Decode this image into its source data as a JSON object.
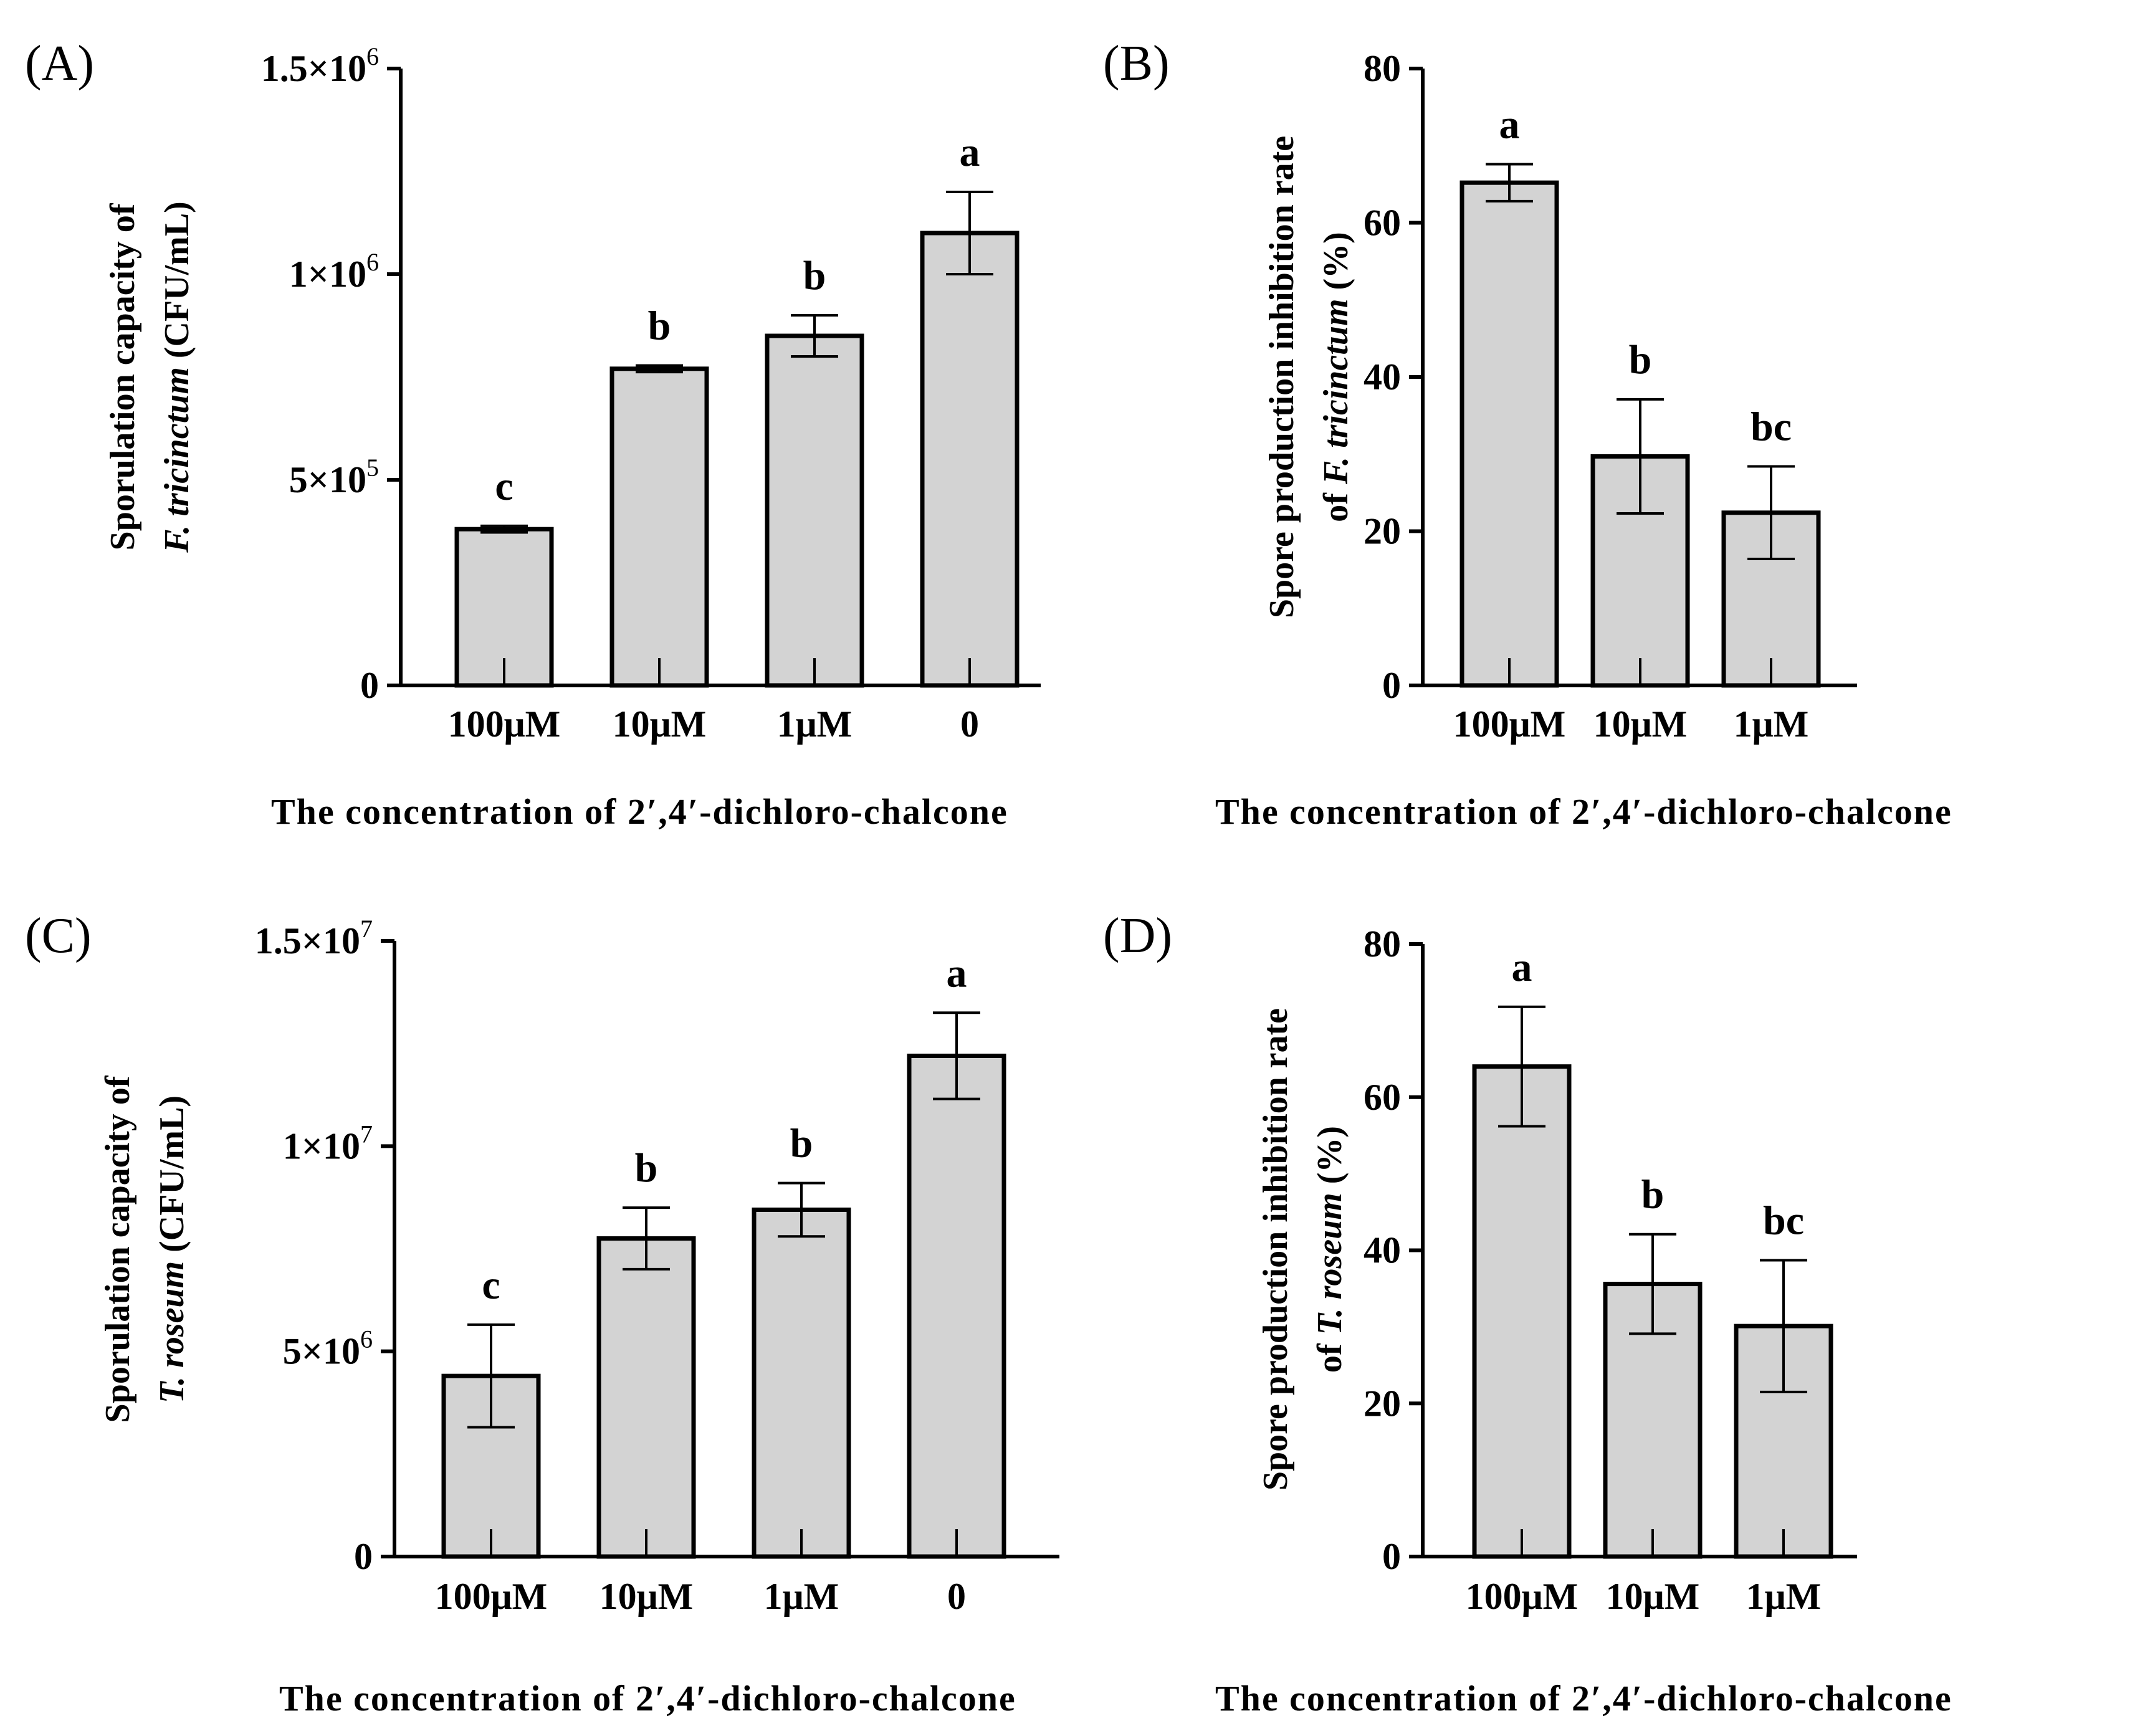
{
  "chart_data": [
    {
      "type": "bar",
      "panel_label": "(A)",
      "categories": [
        "100μM",
        "10μM",
        "1μM",
        "0"
      ],
      "values": [
        380000,
        770000,
        850000,
        1100000
      ],
      "errors": [
        8000,
        8000,
        50000,
        100000
      ],
      "significance": [
        "c",
        "b",
        "b",
        "a"
      ],
      "ylim": [
        0,
        1500000
      ],
      "yticks": [
        {
          "value": 0,
          "mant": "0",
          "exp": ""
        },
        {
          "value": 500000,
          "mant": "5×10",
          "exp": "5"
        },
        {
          "value": 1000000,
          "mant": "1×10",
          "exp": "6"
        },
        {
          "value": 1500000,
          "mant": "1.5×10",
          "exp": "6"
        }
      ],
      "ylabel_line1": "Sporulation capacity of",
      "ylabel_species": "F. tricinctum",
      "ylabel_unit": " (CFU/mL)",
      "xlabel": "The concentration of 2′,4′-dichloro-chalcone"
    },
    {
      "type": "bar",
      "panel_label": "(B)",
      "categories": [
        "100μM",
        "10μM",
        "1μM"
      ],
      "values": [
        65.2,
        29.7,
        22.4
      ],
      "errors": [
        2.4,
        7.4,
        6.0
      ],
      "significance": [
        "a",
        "b",
        "bc"
      ],
      "ylim": [
        0,
        80
      ],
      "yticks": [
        {
          "value": 0,
          "mant": "0",
          "exp": ""
        },
        {
          "value": 20,
          "mant": "20",
          "exp": ""
        },
        {
          "value": 40,
          "mant": "40",
          "exp": ""
        },
        {
          "value": 60,
          "mant": "60",
          "exp": ""
        },
        {
          "value": 80,
          "mant": "80",
          "exp": ""
        }
      ],
      "ylabel_line1": "Spore production inhibition rate",
      "ylabel_prefix": "of ",
      "ylabel_species": "F. tricinctum",
      "ylabel_unit": "  (%)",
      "xlabel": "The concentration of 2′,4′-dichloro-chalcone"
    },
    {
      "type": "bar",
      "panel_label": "(C)",
      "categories": [
        "100μM",
        "10μM",
        "1μM",
        "0"
      ],
      "values": [
        4400000,
        7750000,
        8450000,
        12200000
      ],
      "errors": [
        1250000,
        750000,
        650000,
        1050000
      ],
      "significance": [
        "c",
        "b",
        "b",
        "a"
      ],
      "ylim": [
        0,
        15000000
      ],
      "yticks": [
        {
          "value": 0,
          "mant": "0",
          "exp": ""
        },
        {
          "value": 5000000,
          "mant": "5×10",
          "exp": "6"
        },
        {
          "value": 10000000,
          "mant": "1×10",
          "exp": "7"
        },
        {
          "value": 15000000,
          "mant": "1.5×10",
          "exp": "7"
        }
      ],
      "ylabel_line1": "Sporulation capacity of",
      "ylabel_species": "T. roseum",
      "ylabel_unit": " (CFU/mL)",
      "xlabel": "The concentration of 2′,4′-dichloro-chalcone"
    },
    {
      "type": "bar",
      "panel_label": "(D)",
      "categories": [
        "100μM",
        "10μM",
        "1μM"
      ],
      "values": [
        64.0,
        35.6,
        30.1
      ],
      "errors": [
        7.8,
        6.5,
        8.6
      ],
      "significance": [
        "a",
        "b",
        "bc"
      ],
      "ylim": [
        0,
        80
      ],
      "yticks": [
        {
          "value": 0,
          "mant": "0",
          "exp": ""
        },
        {
          "value": 20,
          "mant": "20",
          "exp": ""
        },
        {
          "value": 40,
          "mant": "40",
          "exp": ""
        },
        {
          "value": 60,
          "mant": "60",
          "exp": ""
        },
        {
          "value": 80,
          "mant": "80",
          "exp": ""
        }
      ],
      "ylabel_line1": "Spore production inhibition rate",
      "ylabel_prefix": "of ",
      "ylabel_species": "T. roseum",
      "ylabel_unit": "  (%)",
      "xlabel": "The concentration of 2′,4′-dichloro-chalcone"
    }
  ],
  "colors": {
    "bar_fill": "#d3d3d3",
    "stroke": "#000000"
  }
}
